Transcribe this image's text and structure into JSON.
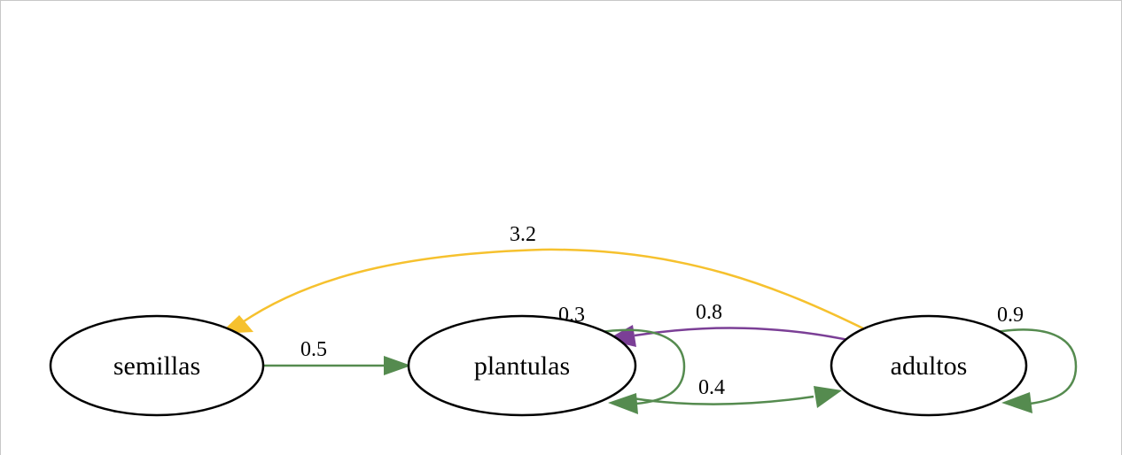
{
  "diagram": {
    "nodes": [
      {
        "id": "semillas",
        "label": "semillas"
      },
      {
        "id": "plantulas",
        "label": "plantulas"
      },
      {
        "id": "adultos",
        "label": "adultos"
      }
    ],
    "edges": [
      {
        "id": "semillas-plantulas",
        "from": "semillas",
        "to": "plantulas",
        "label": "0.5",
        "color": "#558b4f"
      },
      {
        "id": "plantulas-self",
        "from": "plantulas",
        "to": "plantulas",
        "label": "0.3",
        "color": "#558b4f"
      },
      {
        "id": "plantulas-adultos",
        "from": "plantulas",
        "to": "adultos",
        "label": "0.4",
        "color": "#558b4f"
      },
      {
        "id": "adultos-plantulas",
        "from": "adultos",
        "to": "plantulas",
        "label": "0.8",
        "color": "#7b3f96"
      },
      {
        "id": "adultos-self",
        "from": "adultos",
        "to": "adultos",
        "label": "0.9",
        "color": "#558b4f"
      },
      {
        "id": "adultos-semillas",
        "from": "adultos",
        "to": "semillas",
        "label": "3.2",
        "color": "#f6c12e"
      }
    ]
  }
}
